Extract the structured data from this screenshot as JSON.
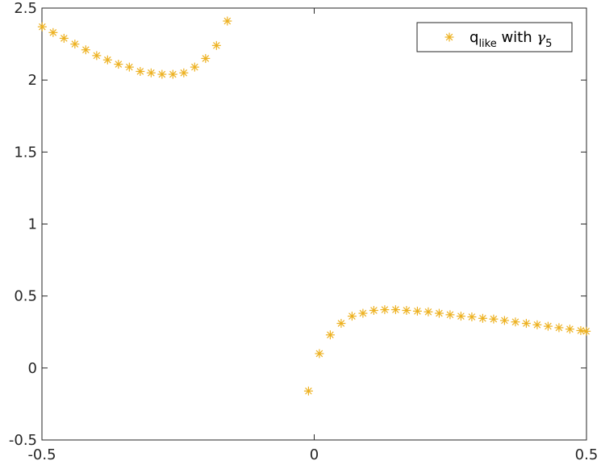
{
  "chart_data": {
    "type": "scatter",
    "title": "",
    "xlabel": "",
    "ylabel": "",
    "xlim": [
      -0.5,
      0.5
    ],
    "ylim": [
      -0.5,
      2.5
    ],
    "xticks": [
      "-0.5",
      "0",
      "0.5"
    ],
    "yticks": [
      "-0.5",
      "0",
      "0.5",
      "1",
      "1.5",
      "2",
      "2.5"
    ],
    "grid": false,
    "legend_position": "top-right",
    "marker": "asterisk",
    "series": [
      {
        "legend": {
          "main": "q",
          "sub": "like",
          "mid": " with ",
          "greek": "γ",
          "greek_sub": "5"
        },
        "color": "#EDB120",
        "points": [
          [
            -0.4995,
            2.37
          ],
          [
            -0.4795,
            2.33
          ],
          [
            -0.4595,
            2.29
          ],
          [
            -0.4395,
            2.25
          ],
          [
            -0.4195,
            2.21
          ],
          [
            -0.3995,
            2.17
          ],
          [
            -0.3795,
            2.14
          ],
          [
            -0.3595,
            2.11
          ],
          [
            -0.3395,
            2.09
          ],
          [
            -0.3195,
            2.06
          ],
          [
            -0.2995,
            2.05
          ],
          [
            -0.2795,
            2.04
          ],
          [
            -0.2595,
            2.04
          ],
          [
            -0.2395,
            2.05
          ],
          [
            -0.2195,
            2.09
          ],
          [
            -0.1995,
            2.15
          ],
          [
            -0.1795,
            2.24
          ],
          [
            -0.1595,
            2.41
          ],
          [
            -0.0105,
            -0.16
          ],
          [
            0.0095,
            0.1
          ],
          [
            0.0295,
            0.23
          ],
          [
            0.0495,
            0.31
          ],
          [
            0.0695,
            0.36
          ],
          [
            0.0895,
            0.38
          ],
          [
            0.1095,
            0.4
          ],
          [
            0.1295,
            0.405
          ],
          [
            0.1495,
            0.405
          ],
          [
            0.1695,
            0.4
          ],
          [
            0.1895,
            0.395
          ],
          [
            0.2095,
            0.39
          ],
          [
            0.2295,
            0.38
          ],
          [
            0.2495,
            0.37
          ],
          [
            0.2695,
            0.36
          ],
          [
            0.2895,
            0.355
          ],
          [
            0.3095,
            0.345
          ],
          [
            0.3295,
            0.34
          ],
          [
            0.3495,
            0.33
          ],
          [
            0.3695,
            0.32
          ],
          [
            0.3895,
            0.31
          ],
          [
            0.4095,
            0.3
          ],
          [
            0.4295,
            0.29
          ],
          [
            0.4495,
            0.28
          ],
          [
            0.4695,
            0.27
          ],
          [
            0.4895,
            0.26
          ],
          [
            0.4995,
            0.255
          ]
        ]
      }
    ]
  }
}
